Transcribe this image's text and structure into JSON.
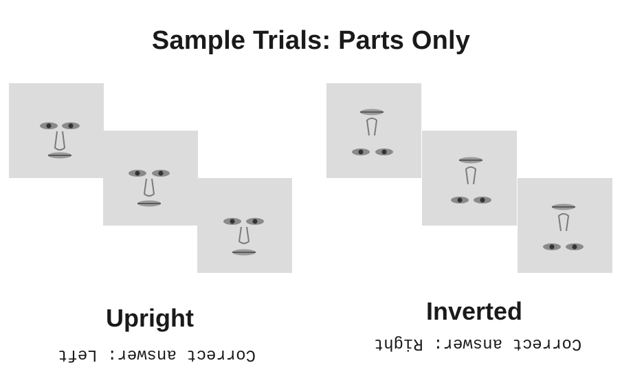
{
  "title": "Sample Trials: Parts Only",
  "groups": [
    {
      "label": "Upright",
      "answer": "Correct answer: Left",
      "orientation": "upright"
    },
    {
      "label": "Inverted",
      "answer": "Correct answer: Right",
      "orientation": "inverted"
    }
  ],
  "colors": {
    "panel_background": "#dcdcdc",
    "text": "#1a1a1a",
    "feature": "#555555"
  }
}
